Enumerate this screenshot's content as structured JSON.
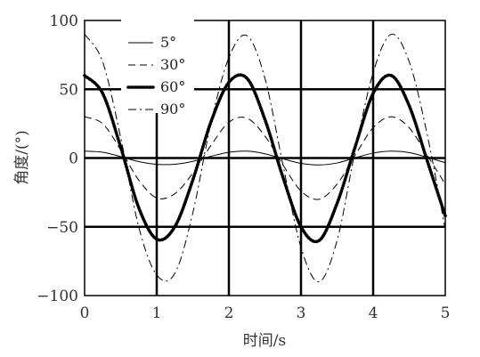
{
  "chart_data": {
    "type": "line",
    "xlabel": "时间/s",
    "ylabel": "角度/(°)",
    "xlim": [
      0,
      5
    ],
    "ylim": [
      -100,
      100
    ],
    "xticks": [
      0,
      1,
      2,
      3,
      4,
      5
    ],
    "yticks": [
      -100,
      -50,
      0,
      50,
      100
    ],
    "xtick_labels": [
      "0",
      "1",
      "2",
      "3",
      "4",
      "5"
    ],
    "ytick_labels": [
      "−100",
      "−50",
      "0",
      "50",
      "100"
    ],
    "grid": true,
    "legend_position": "top-left",
    "series": [
      {
        "name": "5°",
        "style": "solid",
        "amplitude": 5,
        "x": [
          0,
          0.25,
          0.5,
          0.75,
          1.0,
          1.25,
          1.5,
          1.75,
          2.0,
          2.25,
          2.5,
          2.75,
          3.0,
          3.25,
          3.5,
          3.75,
          4.0,
          4.25,
          4.5,
          4.75,
          5.0
        ],
        "y": [
          5,
          4.2,
          1.0,
          -2.6,
          -4.6,
          -4.5,
          -2.4,
          1.2,
          4.2,
          5.0,
          3.1,
          -0.6,
          -3.9,
          -5.0,
          -3.6,
          0.1,
          3.6,
          5.0,
          4.0,
          0.5,
          -3.4
        ]
      },
      {
        "name": "30°",
        "style": "dashed",
        "amplitude": 30,
        "x": [
          0,
          0.25,
          0.5,
          0.75,
          1.0,
          1.25,
          1.5,
          1.75,
          2.0,
          2.25,
          2.5,
          2.75,
          3.0,
          3.25,
          3.5,
          3.75,
          4.0,
          4.25,
          4.5,
          4.75,
          5.0
        ],
        "y": [
          30,
          25,
          6,
          -16,
          -29,
          -26,
          -11,
          9,
          26,
          29,
          16,
          -5,
          -24,
          -30,
          -19,
          2,
          22,
          30,
          22,
          2,
          -19
        ]
      },
      {
        "name": "60°",
        "style": "dotted",
        "amplitude": 60,
        "x": [
          0,
          0.25,
          0.5,
          0.75,
          1.0,
          1.25,
          1.5,
          1.75,
          2.0,
          2.25,
          2.5,
          2.75,
          3.0,
          3.25,
          3.5,
          3.75,
          4.0,
          4.25,
          4.5,
          4.75,
          5.0
        ],
        "y": [
          60,
          47,
          8,
          -36,
          -59,
          -50,
          -16,
          26,
          55,
          58,
          28,
          -14,
          -50,
          -60,
          -33,
          8,
          47,
          60,
          38,
          -2,
          -42
        ]
      },
      {
        "name": "90°",
        "style": "dashdot",
        "amplitude": 90,
        "x": [
          0,
          0.25,
          0.5,
          0.75,
          1.0,
          1.25,
          1.5,
          1.75,
          2.0,
          2.25,
          2.5,
          2.75,
          3.0,
          3.25,
          3.5,
          3.75,
          4.0,
          4.25,
          4.5,
          4.75,
          5.0
        ],
        "y": [
          90,
          70,
          15,
          -50,
          -85,
          -84,
          -40,
          25,
          73,
          89,
          58,
          -5,
          -65,
          -90,
          -60,
          5,
          62,
          90,
          70,
          17,
          -52
        ]
      }
    ]
  }
}
